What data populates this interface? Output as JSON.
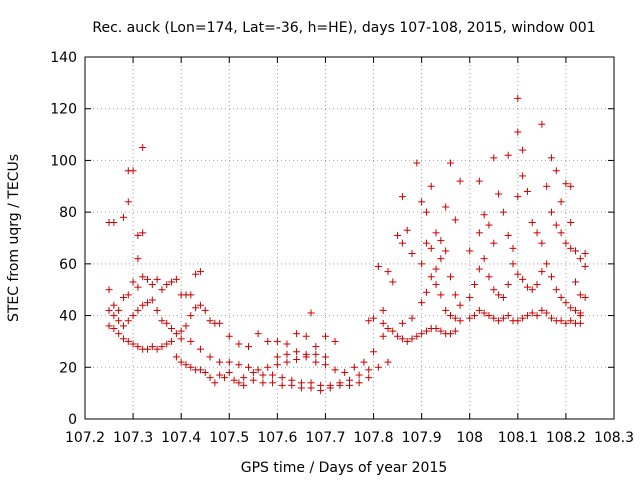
{
  "chart_data": {
    "type": "scatter",
    "title": "Rec. auck (Lon=174, Lat=-36, h=HE), days 107-108, 2015, window 001",
    "xlabel": "GPS time / Days of year 2015",
    "ylabel": "STEC from uqrg / TECUs",
    "xlim": [
      107.2,
      108.3
    ],
    "ylim": [
      0,
      140
    ],
    "x_ticks": [
      107.2,
      107.3,
      107.4,
      107.5,
      107.6,
      107.7,
      107.8,
      107.9,
      108.0,
      108.1,
      108.2,
      108.3
    ],
    "x_tick_labels": [
      "107.2",
      "107.3",
      "107.4",
      "107.5",
      "107.6",
      "107.7",
      "107.8",
      "107.9",
      "108",
      "108.1",
      "108.2",
      "108.3"
    ],
    "y_ticks": [
      0,
      20,
      40,
      60,
      80,
      100,
      120,
      140
    ],
    "y_tick_labels": [
      "0",
      "20",
      "40",
      "60",
      "80",
      "100",
      "120",
      "140"
    ],
    "grid": true,
    "marker": "+",
    "color": "#cc0000",
    "series": [
      {
        "points": [
          [
            107.25,
            76
          ],
          [
            107.26,
            76
          ],
          [
            107.28,
            78
          ],
          [
            107.29,
            84
          ],
          [
            107.3,
            96
          ],
          [
            107.29,
            96
          ],
          [
            107.31,
            71
          ],
          [
            107.32,
            72
          ],
          [
            107.32,
            105
          ],
          [
            107.31,
            62
          ],
          [
            107.25,
            50
          ],
          [
            107.26,
            44
          ],
          [
            107.27,
            42
          ],
          [
            107.28,
            47
          ],
          [
            107.29,
            48
          ],
          [
            107.3,
            53
          ],
          [
            107.31,
            51
          ],
          [
            107.32,
            55
          ],
          [
            107.33,
            54
          ],
          [
            107.34,
            52
          ],
          [
            107.35,
            54
          ],
          [
            107.36,
            50
          ],
          [
            107.37,
            52
          ],
          [
            107.38,
            53
          ],
          [
            107.39,
            54
          ],
          [
            107.4,
            48
          ],
          [
            107.41,
            48
          ],
          [
            107.42,
            48
          ],
          [
            107.43,
            56
          ],
          [
            107.44,
            57
          ],
          [
            107.25,
            42
          ],
          [
            107.26,
            40
          ],
          [
            107.27,
            38
          ],
          [
            107.28,
            36
          ],
          [
            107.29,
            38
          ],
          [
            107.3,
            40
          ],
          [
            107.31,
            42
          ],
          [
            107.32,
            44
          ],
          [
            107.33,
            45
          ],
          [
            107.34,
            46
          ],
          [
            107.35,
            42
          ],
          [
            107.36,
            38
          ],
          [
            107.37,
            37
          ],
          [
            107.38,
            35
          ],
          [
            107.39,
            33
          ],
          [
            107.4,
            34
          ],
          [
            107.41,
            36
          ],
          [
            107.42,
            40
          ],
          [
            107.43,
            43
          ],
          [
            107.44,
            44
          ],
          [
            107.45,
            42
          ],
          [
            107.46,
            38
          ],
          [
            107.47,
            37
          ],
          [
            107.48,
            37
          ],
          [
            107.25,
            36
          ],
          [
            107.26,
            35
          ],
          [
            107.27,
            33
          ],
          [
            107.28,
            31
          ],
          [
            107.29,
            30
          ],
          [
            107.3,
            29
          ],
          [
            107.31,
            28
          ],
          [
            107.32,
            27
          ],
          [
            107.33,
            27
          ],
          [
            107.34,
            28
          ],
          [
            107.35,
            27
          ],
          [
            107.36,
            28
          ],
          [
            107.37,
            29
          ],
          [
            107.38,
            30
          ],
          [
            107.39,
            24
          ],
          [
            107.4,
            22
          ],
          [
            107.41,
            21
          ],
          [
            107.42,
            20
          ],
          [
            107.43,
            19
          ],
          [
            107.44,
            19
          ],
          [
            107.45,
            18
          ],
          [
            107.46,
            16
          ],
          [
            107.47,
            14
          ],
          [
            107.48,
            17
          ],
          [
            107.49,
            16
          ],
          [
            107.5,
            18
          ],
          [
            107.51,
            15
          ],
          [
            107.52,
            14
          ],
          [
            107.53,
            13
          ],
          [
            107.4,
            31
          ],
          [
            107.42,
            30
          ],
          [
            107.44,
            27
          ],
          [
            107.46,
            24
          ],
          [
            107.48,
            22
          ],
          [
            107.5,
            22
          ],
          [
            107.52,
            21
          ],
          [
            107.54,
            20
          ],
          [
            107.56,
            19
          ],
          [
            107.58,
            20
          ],
          [
            107.6,
            21
          ],
          [
            107.62,
            22
          ],
          [
            107.64,
            23
          ],
          [
            107.66,
            24
          ],
          [
            107.68,
            25
          ],
          [
            107.7,
            24
          ],
          [
            107.5,
            32
          ],
          [
            107.52,
            29
          ],
          [
            107.54,
            28
          ],
          [
            107.56,
            33
          ],
          [
            107.58,
            30
          ],
          [
            107.6,
            30
          ],
          [
            107.62,
            29
          ],
          [
            107.64,
            33
          ],
          [
            107.66,
            32
          ],
          [
            107.67,
            41
          ],
          [
            107.68,
            28
          ],
          [
            107.7,
            32
          ],
          [
            107.72,
            30
          ],
          [
            107.53,
            16
          ],
          [
            107.55,
            15
          ],
          [
            107.57,
            14
          ],
          [
            107.59,
            14
          ],
          [
            107.61,
            13
          ],
          [
            107.63,
            13
          ],
          [
            107.65,
            12
          ],
          [
            107.67,
            12
          ],
          [
            107.69,
            11
          ],
          [
            107.71,
            12
          ],
          [
            107.73,
            13
          ],
          [
            107.75,
            13
          ],
          [
            107.77,
            14
          ],
          [
            107.79,
            16
          ],
          [
            107.81,
            20
          ],
          [
            107.83,
            22
          ],
          [
            107.55,
            18
          ],
          [
            107.57,
            17
          ],
          [
            107.59,
            17
          ],
          [
            107.61,
            16
          ],
          [
            107.63,
            15
          ],
          [
            107.65,
            14
          ],
          [
            107.67,
            14
          ],
          [
            107.69,
            13
          ],
          [
            107.71,
            13
          ],
          [
            107.73,
            14
          ],
          [
            107.75,
            15
          ],
          [
            107.77,
            17
          ],
          [
            107.79,
            19
          ],
          [
            107.6,
            24
          ],
          [
            107.62,
            25
          ],
          [
            107.64,
            26
          ],
          [
            107.66,
            25
          ],
          [
            107.68,
            22
          ],
          [
            107.7,
            21
          ],
          [
            107.72,
            19
          ],
          [
            107.74,
            18
          ],
          [
            107.76,
            20
          ],
          [
            107.78,
            22
          ],
          [
            107.8,
            26
          ],
          [
            107.82,
            32
          ],
          [
            107.79,
            38
          ],
          [
            107.8,
            39
          ],
          [
            107.81,
            59
          ],
          [
            107.82,
            42
          ],
          [
            107.83,
            57
          ],
          [
            107.84,
            53
          ],
          [
            107.85,
            71
          ],
          [
            107.86,
            68
          ],
          [
            107.87,
            73
          ],
          [
            107.88,
            64
          ],
          [
            107.89,
            99
          ],
          [
            107.9,
            84
          ],
          [
            107.86,
            86
          ],
          [
            107.82,
            37
          ],
          [
            107.83,
            35
          ],
          [
            107.84,
            34
          ],
          [
            107.85,
            32
          ],
          [
            107.86,
            31
          ],
          [
            107.87,
            30
          ],
          [
            107.88,
            31
          ],
          [
            107.89,
            32
          ],
          [
            107.9,
            33
          ],
          [
            107.91,
            34
          ],
          [
            107.92,
            35
          ],
          [
            107.93,
            35
          ],
          [
            107.94,
            34
          ],
          [
            107.95,
            33
          ],
          [
            107.96,
            33
          ],
          [
            107.97,
            34
          ],
          [
            107.86,
            37
          ],
          [
            107.88,
            39
          ],
          [
            107.9,
            45
          ],
          [
            107.91,
            49
          ],
          [
            107.92,
            55
          ],
          [
            107.93,
            58
          ],
          [
            107.94,
            62
          ],
          [
            107.95,
            65
          ],
          [
            107.96,
            55
          ],
          [
            107.97,
            48
          ],
          [
            107.98,
            44
          ],
          [
            107.91,
            80
          ],
          [
            107.92,
            90
          ],
          [
            107.93,
            72
          ],
          [
            107.94,
            69
          ],
          [
            107.95,
            82
          ],
          [
            107.96,
            99
          ],
          [
            107.97,
            77
          ],
          [
            107.98,
            92
          ],
          [
            107.9,
            60
          ],
          [
            107.91,
            68
          ],
          [
            107.92,
            66
          ],
          [
            107.93,
            52
          ],
          [
            107.94,
            48
          ],
          [
            107.95,
            42
          ],
          [
            107.96,
            40
          ],
          [
            107.97,
            39
          ],
          [
            107.98,
            38
          ],
          [
            108.0,
            39
          ],
          [
            108.01,
            40
          ],
          [
            108.02,
            42
          ],
          [
            108.03,
            41
          ],
          [
            108.04,
            40
          ],
          [
            108.05,
            39
          ],
          [
            108.06,
            38
          ],
          [
            108.07,
            39
          ],
          [
            108.08,
            40
          ],
          [
            108.09,
            38
          ],
          [
            108.1,
            38
          ],
          [
            108.11,
            39
          ],
          [
            108.12,
            40
          ],
          [
            108.13,
            41
          ],
          [
            108.14,
            40
          ],
          [
            108.15,
            42
          ],
          [
            108.16,
            41
          ],
          [
            108.17,
            39
          ],
          [
            108.18,
            38
          ],
          [
            108.19,
            38
          ],
          [
            108.2,
            37
          ],
          [
            108.21,
            38
          ],
          [
            108.22,
            37
          ],
          [
            108.23,
            37
          ],
          [
            108.0,
            47
          ],
          [
            108.01,
            52
          ],
          [
            108.02,
            58
          ],
          [
            108.03,
            62
          ],
          [
            108.04,
            55
          ],
          [
            108.05,
            50
          ],
          [
            108.06,
            48
          ],
          [
            108.07,
            47
          ],
          [
            108.08,
            52
          ],
          [
            108.09,
            60
          ],
          [
            108.1,
            56
          ],
          [
            108.11,
            54
          ],
          [
            108.12,
            51
          ],
          [
            108.13,
            50
          ],
          [
            108.14,
            52
          ],
          [
            108.15,
            57
          ],
          [
            108.16,
            60
          ],
          [
            108.17,
            55
          ],
          [
            108.18,
            50
          ],
          [
            108.19,
            47
          ],
          [
            108.2,
            45
          ],
          [
            108.21,
            43
          ],
          [
            108.22,
            42
          ],
          [
            108.23,
            40
          ],
          [
            108.0,
            65
          ],
          [
            108.02,
            72
          ],
          [
            108.03,
            79
          ],
          [
            108.04,
            75
          ],
          [
            108.05,
            68
          ],
          [
            108.06,
            87
          ],
          [
            108.07,
            80
          ],
          [
            108.08,
            71
          ],
          [
            108.09,
            66
          ],
          [
            108.1,
            86
          ],
          [
            108.11,
            94
          ],
          [
            108.12,
            88
          ],
          [
            108.13,
            76
          ],
          [
            108.14,
            72
          ],
          [
            108.15,
            68
          ],
          [
            108.16,
            90
          ],
          [
            108.17,
            80
          ],
          [
            108.18,
            75
          ],
          [
            108.19,
            72
          ],
          [
            108.2,
            68
          ],
          [
            108.21,
            66
          ],
          [
            108.22,
            65
          ],
          [
            108.23,
            62
          ],
          [
            108.02,
            92
          ],
          [
            108.05,
            101
          ],
          [
            108.08,
            102
          ],
          [
            108.1,
            111
          ],
          [
            108.1,
            124
          ],
          [
            108.11,
            104
          ],
          [
            108.15,
            114
          ],
          [
            108.17,
            101
          ],
          [
            108.18,
            96
          ],
          [
            108.2,
            91
          ],
          [
            108.21,
            90
          ],
          [
            108.19,
            84
          ],
          [
            108.21,
            76
          ],
          [
            108.22,
            53
          ],
          [
            108.23,
            48
          ],
          [
            108.24,
            47
          ],
          [
            108.24,
            59
          ],
          [
            108.24,
            64
          ],
          [
            108.23,
            41
          ]
        ]
      }
    ]
  }
}
